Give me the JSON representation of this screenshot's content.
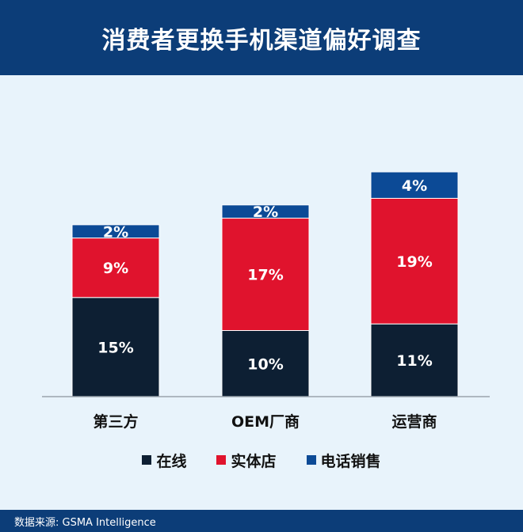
{
  "header": {
    "title": "消费者更换手机渠道偏好调查"
  },
  "footer": {
    "source": "数据来源: GSMA Intelligence"
  },
  "colors": {
    "header_bg": "#0c3d78",
    "chart_bg": "#e8f3fb"
  },
  "chart_data": {
    "type": "bar",
    "stacked": true,
    "categories": [
      "第三方",
      "OEM厂商",
      "运营商"
    ],
    "series": [
      {
        "name": "在线",
        "values": [
          15,
          10,
          11
        ],
        "labels": [
          "15%",
          "10%",
          "11%"
        ],
        "color": "#0d1f33"
      },
      {
        "name": "实体店",
        "values": [
          9,
          17,
          19
        ],
        "labels": [
          "9%",
          "17%",
          "19%"
        ],
        "color": "#e0132d"
      },
      {
        "name": "电话销售",
        "values": [
          2,
          2,
          4
        ],
        "labels": [
          "2%",
          "2%",
          "4%"
        ],
        "color": "#0c4a96"
      }
    ],
    "ylim": [
      0,
      34
    ],
    "grid": false,
    "legend": "bottom",
    "title": "",
    "xlabel": "",
    "ylabel": ""
  }
}
